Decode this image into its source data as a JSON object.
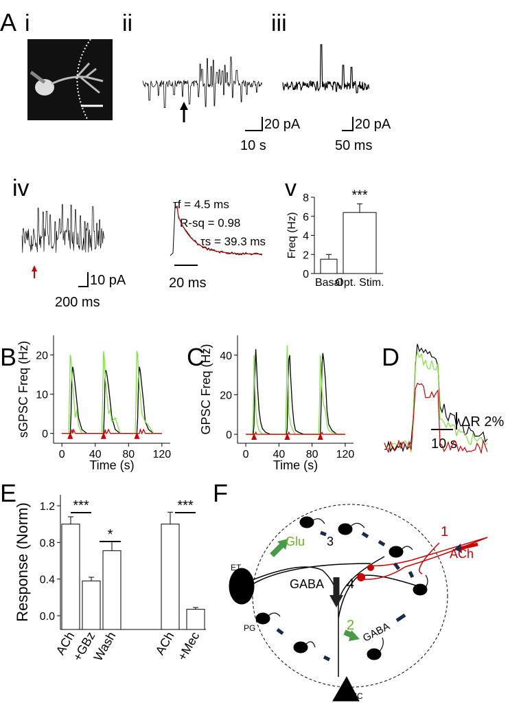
{
  "panel_labels": {
    "A": "A",
    "i": "i",
    "ii": "ii",
    "iii": "iii",
    "iv": "iv",
    "v": "v",
    "B": "B",
    "C": "C",
    "D": "D",
    "E": "E",
    "F": "F"
  },
  "scale_bars": {
    "ii_y": "20 pA",
    "ii_x": "10 s",
    "iii_y": "20 pA",
    "iii_x": "50 ms",
    "iv_y": "10 pA",
    "iv_x": "200 ms",
    "fit_x": "20 ms",
    "D_y": "ΔR 2%",
    "D_x": "10 s"
  },
  "fit_annotations": [
    "τf = 4.5 ms",
    "R-sq = 0.98",
    "τs = 39.3 ms"
  ],
  "chart_data": [
    {
      "type": "bar",
      "ylabel": "Freq (Hz)",
      "categories": [
        "Basal",
        "Opt. Stim."
      ],
      "values": [
        1.5,
        6.4
      ],
      "errors": [
        0.5,
        0.9
      ],
      "ylim": [
        0,
        8
      ],
      "yticks": [
        0,
        2,
        4,
        6,
        8
      ],
      "color": "#ffffff",
      "significance": [
        "***"
      ]
    },
    {
      "type": "line",
      "ylabel": "sGPSC Freq (Hz)",
      "xlabel": "Time (s)",
      "xlim": [
        -10,
        130
      ],
      "ylim": [
        -2.5,
        25
      ],
      "xticks": [
        0,
        40,
        80,
        120
      ],
      "yticks": [
        0,
        10,
        20
      ],
      "stim_times": [
        10,
        50,
        90
      ],
      "x": [
        0,
        8,
        9,
        10,
        11,
        12,
        13,
        14,
        16,
        18,
        20,
        24,
        30,
        40,
        48,
        49,
        50,
        51,
        52,
        53,
        54,
        56,
        58,
        60,
        64,
        70,
        80,
        88,
        89,
        90,
        91,
        92,
        93,
        94,
        96,
        98,
        100,
        104,
        110,
        120
      ],
      "series": [
        {
          "color": "#000000",
          "values": [
            0,
            0,
            0,
            0,
            5,
            15,
            17,
            16,
            12,
            8,
            4,
            1,
            0,
            0,
            0,
            0,
            0,
            6,
            16,
            16,
            15,
            12,
            8,
            4,
            1,
            0,
            0,
            0,
            0,
            0,
            4,
            14,
            17,
            16,
            12,
            8,
            3,
            1,
            0,
            0
          ]
        },
        {
          "color": "#80e040",
          "values": [
            0,
            0,
            8,
            20,
            19,
            14,
            12,
            10,
            4,
            6,
            2,
            0,
            0,
            0,
            0,
            10,
            21,
            19,
            14,
            12,
            10,
            5,
            6,
            3,
            4,
            0,
            0,
            0,
            9,
            21,
            20,
            15,
            12,
            10,
            5,
            4,
            3,
            2,
            0,
            0
          ]
        },
        {
          "color": "#cc0000",
          "values": [
            0,
            0,
            0,
            0,
            0,
            1,
            0,
            1,
            0,
            0,
            0,
            0,
            0,
            0,
            0,
            0,
            0,
            0,
            1,
            0,
            0,
            1,
            0,
            0,
            0,
            0,
            0,
            0,
            0,
            0,
            0,
            0,
            0,
            1,
            0,
            1,
            0,
            0,
            0,
            0
          ]
        }
      ]
    },
    {
      "type": "line",
      "ylabel": "GPSC Freq (Hz)",
      "xlabel": "Time (s)",
      "xlim": [
        -10,
        130
      ],
      "ylim": [
        -4.5,
        50
      ],
      "xticks": [
        0,
        40,
        80,
        120
      ],
      "yticks": [
        0,
        20,
        40
      ],
      "stim_times": [
        10,
        50,
        90
      ],
      "x": [
        0,
        8,
        9,
        10,
        11,
        12,
        13,
        14,
        16,
        18,
        20,
        24,
        30,
        40,
        48,
        49,
        50,
        51,
        52,
        53,
        54,
        56,
        58,
        60,
        64,
        70,
        80,
        88,
        89,
        90,
        91,
        92,
        93,
        94,
        96,
        98,
        100,
        104,
        110,
        120
      ],
      "series": [
        {
          "color": "#000000",
          "values": [
            0,
            0,
            0,
            5,
            30,
            43,
            35,
            25,
            12,
            6,
            3,
            1,
            0,
            0,
            0,
            0,
            3,
            25,
            38,
            40,
            30,
            15,
            6,
            2,
            1,
            0,
            0,
            0,
            0,
            0,
            15,
            35,
            41,
            38,
            28,
            12,
            5,
            2,
            0,
            0
          ]
        },
        {
          "color": "#80e040",
          "values": [
            0,
            0,
            10,
            40,
            25,
            12,
            8,
            5,
            2,
            1,
            0,
            0,
            0,
            0,
            0,
            20,
            45,
            30,
            10,
            8,
            5,
            3,
            1,
            0,
            0,
            0,
            0,
            0,
            15,
            40,
            30,
            22,
            18,
            15,
            12,
            5,
            2,
            1,
            0,
            0
          ]
        },
        {
          "color": "#cc0000",
          "values": [
            0,
            0,
            0,
            0,
            0,
            1,
            0,
            0,
            0,
            0,
            0,
            0,
            0,
            0,
            0,
            0,
            0,
            0,
            1,
            0,
            0,
            0,
            0,
            0,
            0,
            0,
            0,
            0,
            0,
            0,
            0,
            1,
            0,
            0,
            0,
            0,
            0,
            0,
            0,
            0
          ]
        }
      ]
    },
    {
      "type": "bar",
      "ylabel": "Response (Norm)",
      "categories": [
        "ACh",
        "+GBz",
        "Wash",
        "ACh",
        "+Mec"
      ],
      "values": [
        1.0,
        0.38,
        0.71,
        1.0,
        0.07
      ],
      "errors": [
        0.08,
        0.04,
        0.1,
        0.13,
        0.02
      ],
      "ylim": [
        -0.15,
        1.32
      ],
      "yticks": [
        {
          "value": 0,
          "label": "0.0"
        },
        {
          "value": 0.4,
          "label": "0.4"
        },
        {
          "value": 0.8,
          "label": "0.8"
        },
        {
          "value": 1.2,
          "label": "1.2"
        }
      ],
      "color": "#ffffff",
      "significance": [
        "***",
        "*",
        "***"
      ]
    }
  ],
  "diagram": {
    "glu": "Glu",
    "n3": "3",
    "n1": "1",
    "ach": "ACh",
    "gaba_center": "GABA",
    "n4": "4",
    "n2": "2",
    "gaba_right": "GABA",
    "et": "ET",
    "pg": "PG",
    "mc": "MC"
  }
}
